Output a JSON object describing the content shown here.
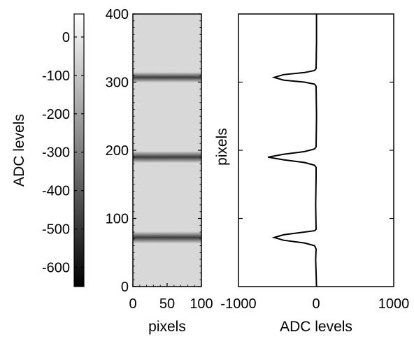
{
  "chart_data": [
    {
      "type": "colorbar",
      "ylabel": "ADC levels",
      "ticks": [
        0,
        -100,
        -200,
        -300,
        -400,
        -500,
        -600
      ],
      "tick_labels": [
        "0",
        "-100",
        "-200",
        "-300",
        "-400",
        "-500",
        "-600"
      ],
      "range": [
        -650,
        60
      ],
      "colormap": {
        "low": "#000000",
        "high": "#ffffff"
      }
    },
    {
      "type": "heatmap",
      "xlabel": "pixels",
      "xticks": [
        0,
        50,
        100
      ],
      "xtick_labels": [
        "0",
        "50",
        "100"
      ],
      "yticks": [
        0,
        100,
        200,
        300,
        400
      ],
      "ytick_labels": [
        "0",
        "100",
        "200",
        "300",
        "400"
      ],
      "xlim": [
        0,
        100
      ],
      "ylim": [
        0,
        400
      ],
      "dark_bands": [
        {
          "y": 72,
          "width": 16,
          "min_value": -600
        },
        {
          "y": 190,
          "width": 16,
          "min_value": -600
        },
        {
          "y": 307,
          "width": 14,
          "min_value": -620
        }
      ]
    },
    {
      "type": "line",
      "xlabel": "ADC levels",
      "ylabel": "pixels",
      "xticks": [
        -1000,
        0,
        1000
      ],
      "xtick_labels": [
        "-1000",
        "0",
        "1000"
      ],
      "xlim": [
        -1000,
        1000
      ],
      "ylim": [
        0,
        400
      ],
      "profile": [
        {
          "y": 0,
          "x": 5
        },
        {
          "y": 20,
          "x": 0
        },
        {
          "y": 40,
          "x": -5
        },
        {
          "y": 55,
          "x": 0
        },
        {
          "y": 60,
          "x": -20
        },
        {
          "y": 64,
          "x": -150
        },
        {
          "y": 68,
          "x": -420
        },
        {
          "y": 72,
          "x": -540
        },
        {
          "y": 76,
          "x": -420
        },
        {
          "y": 80,
          "x": -150
        },
        {
          "y": 82,
          "x": -20
        },
        {
          "y": 84,
          "x": 0
        },
        {
          "y": 120,
          "x": -5
        },
        {
          "y": 160,
          "x": 0
        },
        {
          "y": 175,
          "x": 0
        },
        {
          "y": 178,
          "x": -20
        },
        {
          "y": 182,
          "x": -150
        },
        {
          "y": 186,
          "x": -420
        },
        {
          "y": 190,
          "x": -620
        },
        {
          "y": 194,
          "x": -420
        },
        {
          "y": 198,
          "x": -150
        },
        {
          "y": 202,
          "x": -20
        },
        {
          "y": 205,
          "x": 0
        },
        {
          "y": 250,
          "x": 5
        },
        {
          "y": 294,
          "x": 0
        },
        {
          "y": 297,
          "x": -20
        },
        {
          "y": 300,
          "x": -150
        },
        {
          "y": 303,
          "x": -420
        },
        {
          "y": 307,
          "x": -540
        },
        {
          "y": 311,
          "x": -420
        },
        {
          "y": 314,
          "x": -150
        },
        {
          "y": 317,
          "x": -20
        },
        {
          "y": 320,
          "x": 0
        },
        {
          "y": 360,
          "x": 5
        },
        {
          "y": 400,
          "x": 5
        }
      ]
    }
  ]
}
